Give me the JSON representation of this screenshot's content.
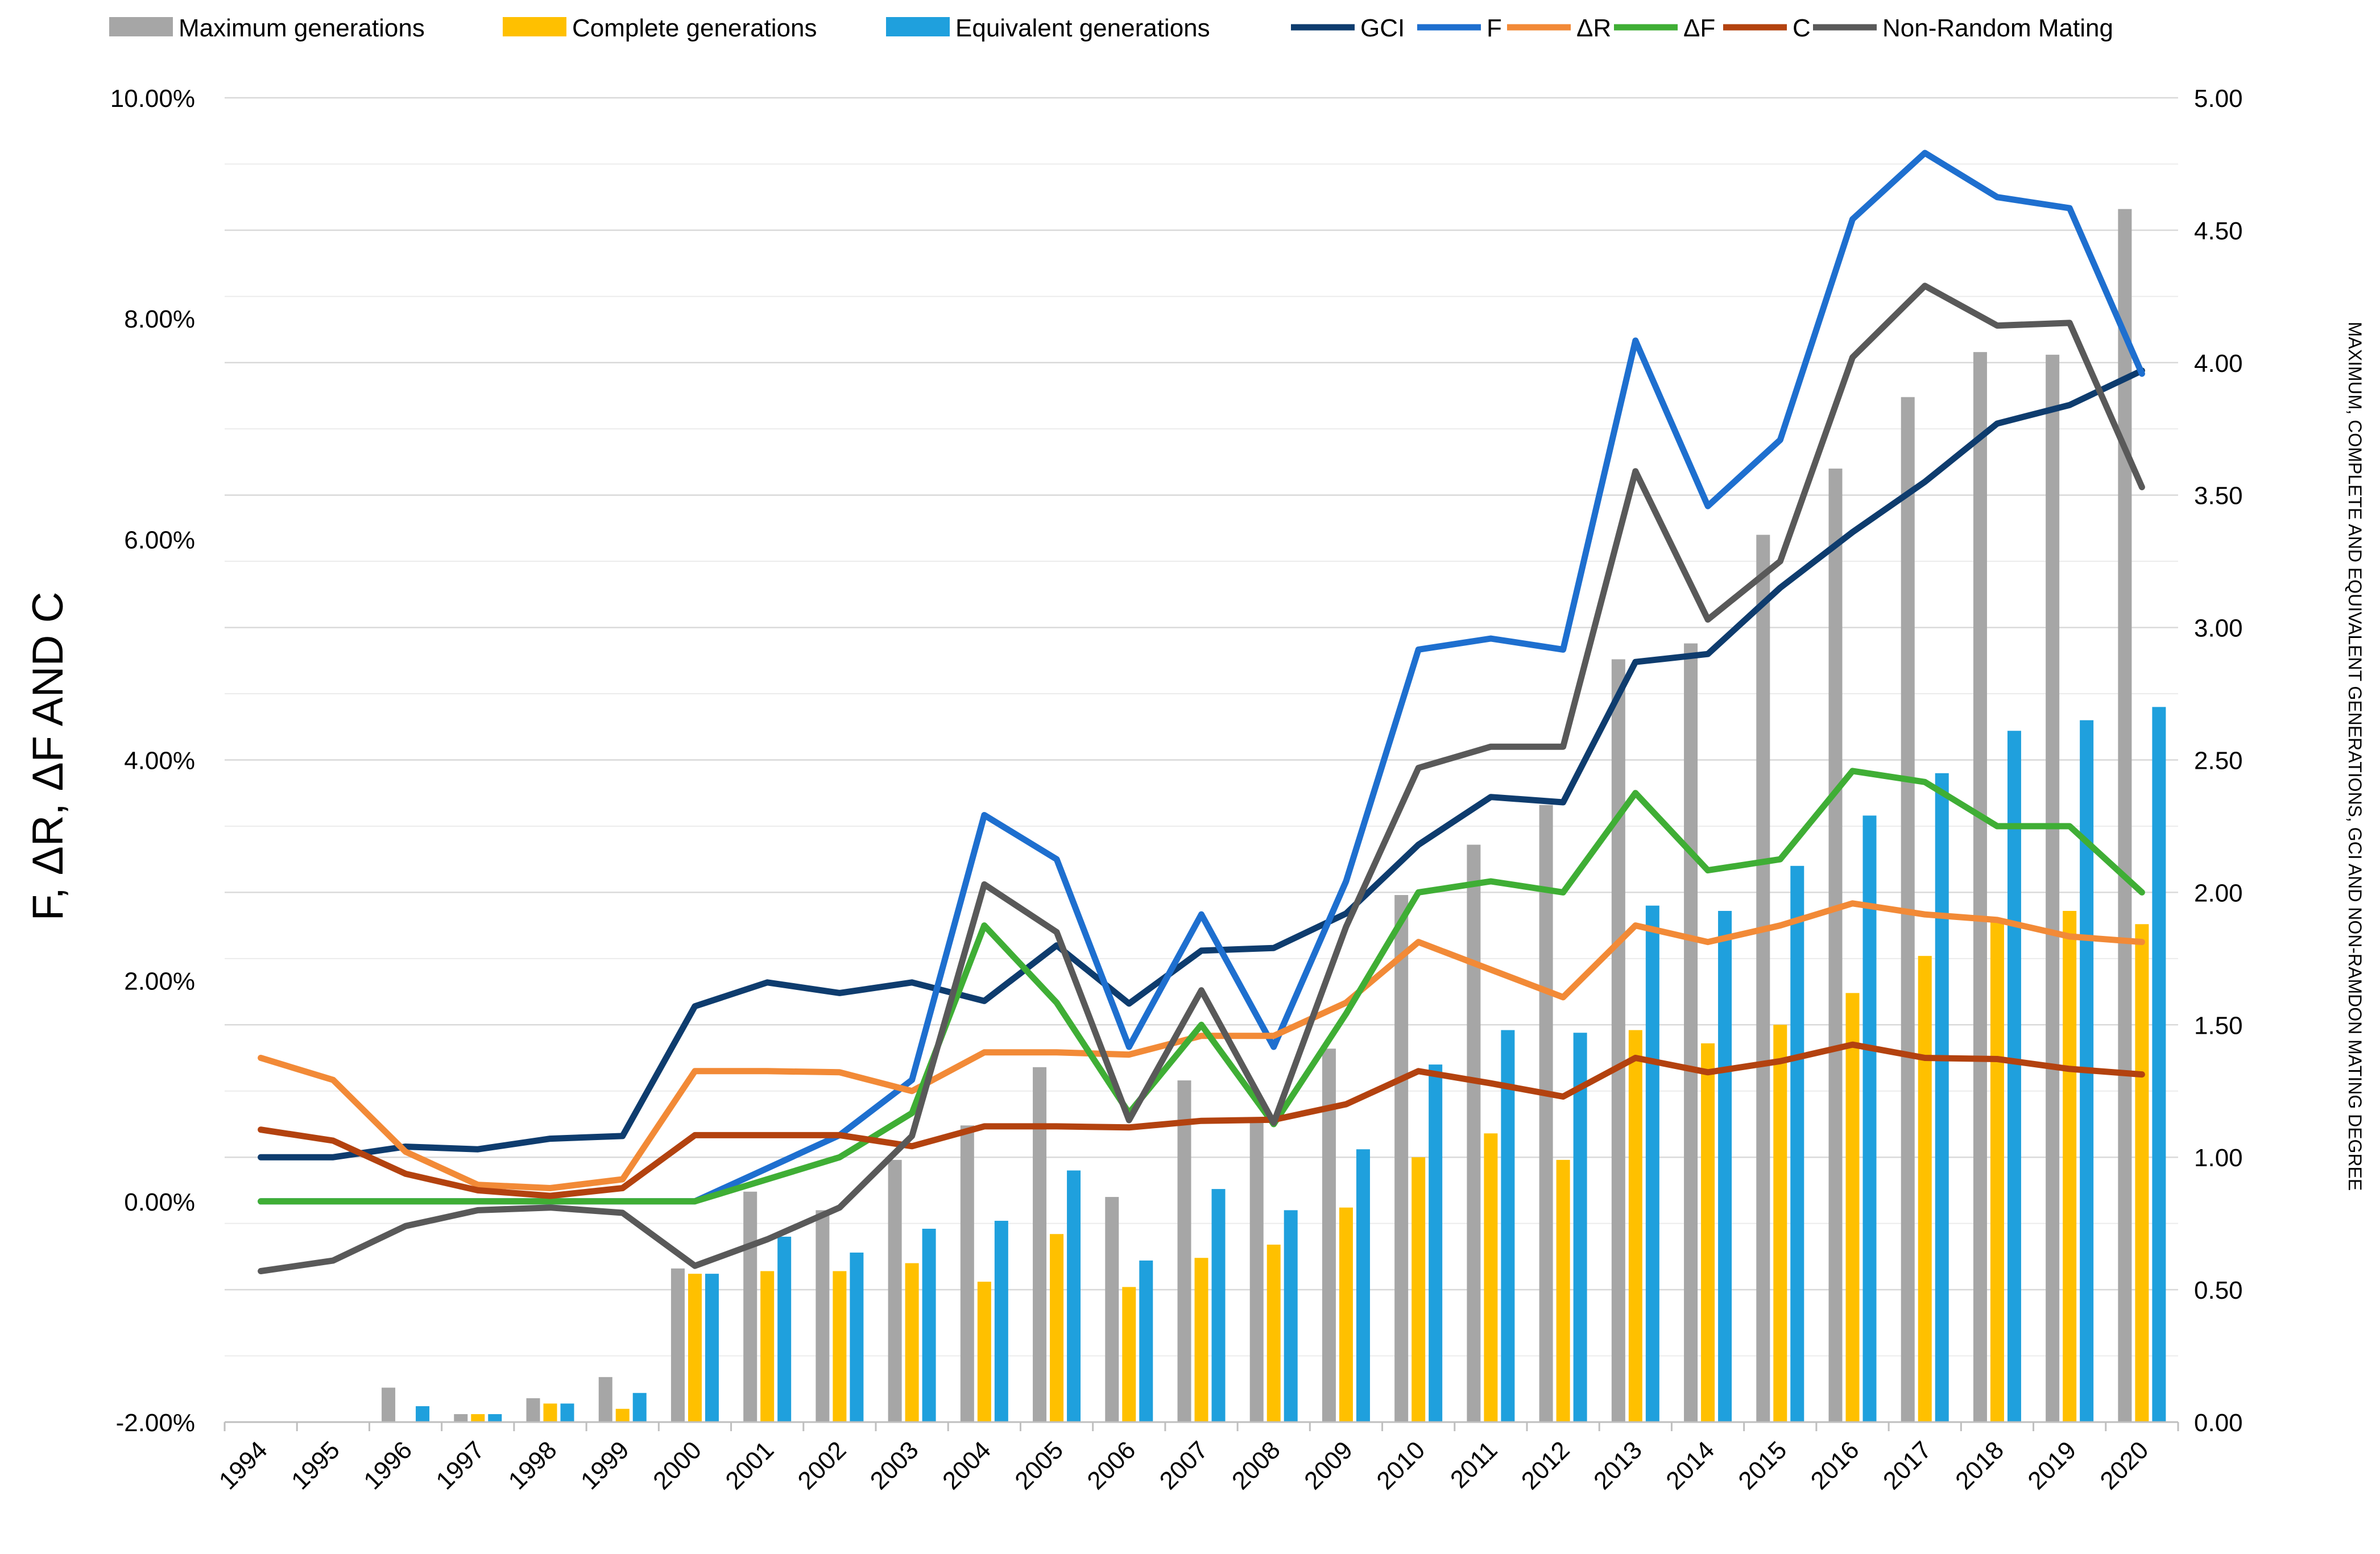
{
  "chart_data": {
    "type": "bar",
    "title": "",
    "xlabel": "",
    "ylabel_left": "F, ΔR, ΔF AND C",
    "ylabel_right": "MAXIMUM, COMPLETE AND EQUIVALENT GENERATIONS, GCI AND NON-RAMDON MATING DEGREE",
    "left_axis": {
      "min": -0.02,
      "max": 0.1,
      "step": 0.02,
      "format": "percent",
      "tick_labels": [
        "-2.00%",
        "0.00%",
        "2.00%",
        "4.00%",
        "6.00%",
        "8.00%",
        "10.00%"
      ]
    },
    "right_axis": {
      "min": 0,
      "max": 5,
      "step": 0.5,
      "tick_labels": [
        "0.00",
        "0.50",
        "1.00",
        "1.50",
        "2.00",
        "2.50",
        "3.00",
        "3.50",
        "4.00",
        "4.50",
        "5.00"
      ]
    },
    "categories": [
      "1994",
      "1995",
      "1996",
      "1997",
      "1998",
      "1999",
      "2000",
      "2001",
      "2002",
      "2003",
      "2004",
      "2005",
      "2006",
      "2007",
      "2008",
      "2009",
      "2010",
      "2011",
      "2012",
      "2013",
      "2014",
      "2015",
      "2016",
      "2017",
      "2018",
      "2019",
      "2020"
    ],
    "legend_position": "top",
    "bar_series": [
      {
        "name": "Maximum generations",
        "color": "#a6a6a6",
        "axis": "right",
        "values": [
          0,
          0,
          0.13,
          0.03,
          0.09,
          0.17,
          0.58,
          0.87,
          0.8,
          0.99,
          1.12,
          1.34,
          0.85,
          1.29,
          1.13,
          1.41,
          1.99,
          2.18,
          2.33,
          2.88,
          2.94,
          3.35,
          3.6,
          3.87,
          4.04,
          4.03,
          4.58
        ]
      },
      {
        "name": "Complete generations",
        "color": "#ffc000",
        "axis": "right",
        "values": [
          0,
          0,
          0,
          0.03,
          0.07,
          0.05,
          0.56,
          0.57,
          0.57,
          0.6,
          0.53,
          0.71,
          0.51,
          0.62,
          0.67,
          0.81,
          1.0,
          1.09,
          0.99,
          1.48,
          1.43,
          1.5,
          1.62,
          1.76,
          1.89,
          1.93,
          1.88
        ]
      },
      {
        "name": "Equivalent generations",
        "color": "#1fa0dd",
        "axis": "right",
        "values": [
          0,
          0,
          0.06,
          0.03,
          0.07,
          0.11,
          0.56,
          0.7,
          0.64,
          0.73,
          0.76,
          0.95,
          0.61,
          0.88,
          0.8,
          1.03,
          1.35,
          1.48,
          1.47,
          1.95,
          1.93,
          2.1,
          2.29,
          2.45,
          2.61,
          2.65,
          2.7
        ]
      }
    ],
    "line_series": [
      {
        "name": "GCI",
        "color": "#0e3c6e",
        "axis": "right",
        "values": [
          1.0,
          1.0,
          1.04,
          1.03,
          1.07,
          1.08,
          1.57,
          1.66,
          1.62,
          1.66,
          1.59,
          1.8,
          1.58,
          1.78,
          1.79,
          1.92,
          2.18,
          2.36,
          2.34,
          2.87,
          2.9,
          3.15,
          3.36,
          3.55,
          3.77,
          3.84,
          3.97
        ]
      },
      {
        "name": "F",
        "color": "#1e6fcf",
        "axis": "left",
        "values": [
          0,
          0,
          0,
          0,
          0,
          0,
          0,
          0.003,
          0.006,
          0.011,
          0.035,
          0.031,
          0.014,
          0.026,
          0.014,
          0.029,
          0.05,
          0.051,
          0.05,
          0.078,
          0.063,
          0.069,
          0.089,
          0.095,
          0.091,
          0.09,
          0.075
        ]
      },
      {
        "name": "ΔR",
        "color": "#f28a37",
        "axis": "left",
        "values": [
          0.013,
          0.011,
          0.0045,
          0.0015,
          0.0012,
          0.002,
          0.0118,
          0.0118,
          0.0117,
          0.01,
          0.0135,
          0.0135,
          0.0133,
          0.015,
          0.015,
          0.018,
          0.0235,
          0.021,
          0.0185,
          0.025,
          0.0235,
          0.025,
          0.027,
          0.026,
          0.0255,
          0.024,
          0.0235
        ]
      },
      {
        "name": "ΔF",
        "color": "#3fae35",
        "axis": "left",
        "values": [
          0,
          0,
          0,
          0,
          0,
          0,
          0,
          0.002,
          0.004,
          0.008,
          0.025,
          0.018,
          0.008,
          0.016,
          0.007,
          0.017,
          0.028,
          0.029,
          0.028,
          0.037,
          0.03,
          0.031,
          0.039,
          0.038,
          0.034,
          0.034,
          0.028
        ]
      },
      {
        "name": "C",
        "color": "#b3420f",
        "axis": "left",
        "values": [
          0.0065,
          0.0055,
          0.0025,
          0.001,
          0.0005,
          0.0012,
          0.006,
          0.006,
          0.006,
          0.005,
          0.0068,
          0.0068,
          0.0067,
          0.0073,
          0.0074,
          0.0088,
          0.0118,
          0.0107,
          0.0095,
          0.013,
          0.0117,
          0.0127,
          0.0142,
          0.013,
          0.0129,
          0.012,
          0.0115
        ]
      },
      {
        "name": "Non-Random Mating",
        "color": "#595959",
        "axis": "right",
        "values": [
          0.57,
          0.61,
          0.74,
          0.8,
          0.81,
          0.79,
          0.59,
          0.69,
          0.81,
          1.08,
          2.03,
          1.85,
          1.14,
          1.63,
          1.13,
          1.87,
          2.47,
          2.55,
          2.55,
          3.59,
          3.03,
          3.25,
          4.02,
          4.29,
          4.14,
          4.15,
          3.53
        ]
      }
    ],
    "legend": [
      "Maximum generations",
      "Complete generations",
      "Equivalent generations",
      "GCI",
      "F",
      "ΔR",
      "ΔF",
      "C",
      "Non-Random Mating"
    ]
  }
}
